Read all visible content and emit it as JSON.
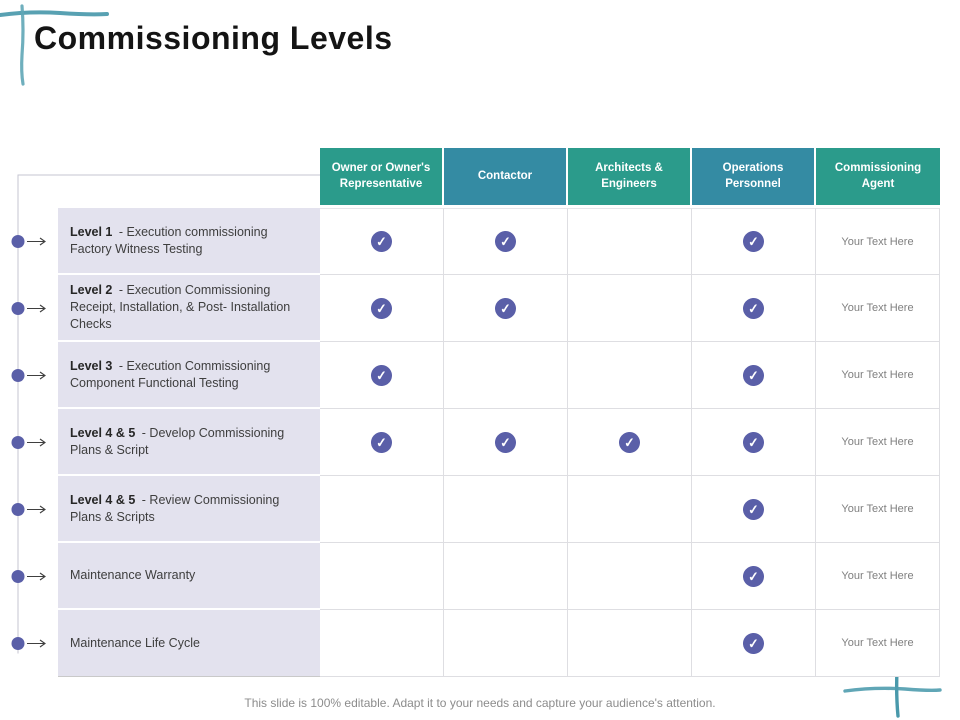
{
  "title": "Commissioning Levels",
  "footer": "This slide is 100% editable. Adapt it to your needs and capture your audience's attention.",
  "colors": {
    "header_green": "#2b9b8b",
    "header_blue": "#348ba3",
    "check_purple": "#5a5fa8",
    "label_bg": "#e3e2ee",
    "sketch_teal": "#4f9cae",
    "connector_gray": "#c6c5d2",
    "arrow_gray": "#3f3f3f"
  },
  "icons": {
    "check": "✓"
  },
  "table": {
    "columns": [
      "Owner or Owner's Representative",
      "Contactor",
      "Architects & Engineers",
      "Operations Personnel",
      "Commissioning Agent"
    ],
    "rows": [
      {
        "label_bold": "Level 1",
        "label_rest": "- Execution commissioning Factory Witness Testing",
        "checks": [
          true,
          true,
          false,
          true
        ],
        "agent_text": "Your Text Here"
      },
      {
        "label_bold": "Level 2",
        "label_rest": "- Execution Commissioning Receipt, Installation, & Post- Installation Checks",
        "checks": [
          true,
          true,
          false,
          true
        ],
        "agent_text": "Your Text Here"
      },
      {
        "label_bold": "Level 3",
        "label_rest": "- Execution Commissioning Component Functional Testing",
        "checks": [
          true,
          false,
          false,
          true
        ],
        "agent_text": "Your Text Here"
      },
      {
        "label_bold": "Level 4 & 5",
        "label_rest": "- Develop Commissioning Plans & Script",
        "checks": [
          true,
          true,
          true,
          true
        ],
        "agent_text": "Your Text Here"
      },
      {
        "label_bold": "Level 4 & 5",
        "label_rest": "- Review Commissioning Plans & Scripts",
        "checks": [
          false,
          false,
          false,
          true
        ],
        "agent_text": "Your Text Here"
      },
      {
        "label_bold": "",
        "label_rest": "Maintenance Warranty",
        "checks": [
          false,
          false,
          false,
          true
        ],
        "agent_text": "Your Text Here"
      },
      {
        "label_bold": "",
        "label_rest": "Maintenance Life Cycle",
        "checks": [
          false,
          false,
          false,
          true
        ],
        "agent_text": "Your Text Here"
      }
    ]
  }
}
